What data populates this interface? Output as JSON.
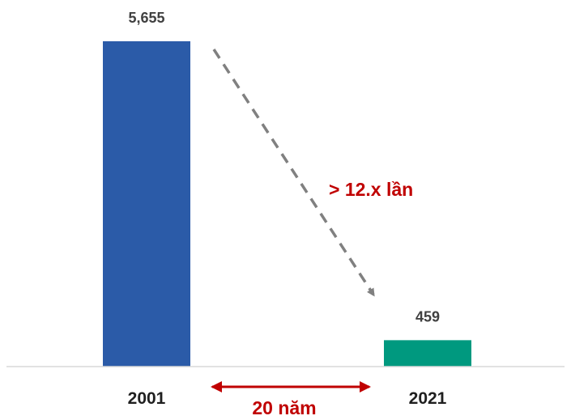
{
  "chart_data": {
    "type": "bar",
    "categories": [
      "2001",
      "2021"
    ],
    "values": [
      5655,
      459
    ],
    "value_labels": [
      "5,655",
      "459"
    ],
    "bar_colors": [
      "#2b5ba8",
      "#00997f"
    ],
    "ylim": [
      0,
      5655
    ],
    "grid": false,
    "legend": "none",
    "xlabel": "",
    "ylabel": ""
  },
  "annotations": {
    "ratio_label": "> 12.x lần",
    "period_label": "20 năm",
    "accent_color": "#c00000",
    "arrow_color": "#808080"
  }
}
